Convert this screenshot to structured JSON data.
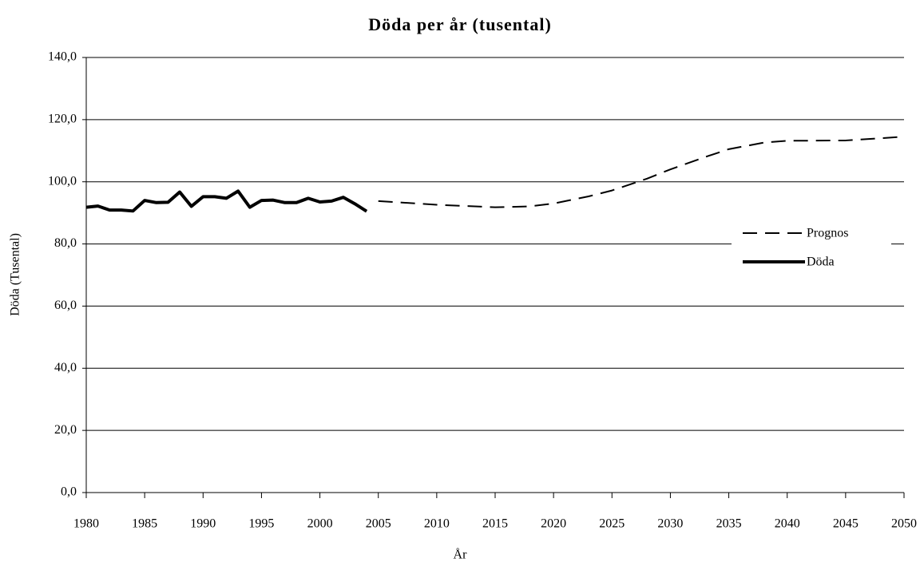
{
  "chart_data": {
    "type": "line",
    "title": "Döda per år (tusental)",
    "x_label": "År",
    "y_label": "Döda (Tusental)",
    "xlim": [
      1980,
      2050
    ],
    "xticks": [
      1980,
      1985,
      1990,
      1995,
      2000,
      2005,
      2010,
      2015,
      2020,
      2025,
      2030,
      2035,
      2040,
      2045,
      2050
    ],
    "ylim": [
      0,
      140
    ],
    "yticks": [
      {
        "value": 0,
        "label": "0,0"
      },
      {
        "value": 20,
        "label": "20,0"
      },
      {
        "value": 40,
        "label": "40,0"
      },
      {
        "value": 60,
        "label": "60,0"
      },
      {
        "value": 80,
        "label": "80,0"
      },
      {
        "value": 100,
        "label": "100,0"
      },
      {
        "value": 120,
        "label": "120,0"
      },
      {
        "value": 140,
        "label": "140,0"
      }
    ],
    "grid": true,
    "legend": "right",
    "series": [
      {
        "name": "Prognos",
        "color": "#000000",
        "dash": true,
        "x": [
          2005,
          2010,
          2015,
          2018,
          2020,
          2023,
          2025,
          2028,
          2030,
          2033,
          2035,
          2038,
          2040,
          2045,
          2050
        ],
        "values": [
          93.8,
          92.6,
          91.8,
          92.1,
          93.0,
          95.3,
          97.2,
          101.0,
          104.0,
          108.0,
          110.5,
          112.6,
          113.2,
          113.3,
          114.5
        ]
      },
      {
        "name": "Döda",
        "color": "#000000",
        "dash": false,
        "x": [
          1980,
          1981,
          1982,
          1983,
          1984,
          1985,
          1986,
          1987,
          1988,
          1989,
          1990,
          1991,
          1992,
          1993,
          1994,
          1995,
          1996,
          1997,
          1998,
          1999,
          2000,
          2001,
          2002,
          2003,
          2004
        ],
        "values": [
          91.8,
          92.2,
          90.9,
          90.9,
          90.6,
          94.0,
          93.3,
          93.4,
          96.7,
          92.1,
          95.2,
          95.2,
          94.7,
          97.0,
          91.8,
          94.0,
          94.1,
          93.3,
          93.3,
          94.7,
          93.5,
          93.8,
          95.0,
          92.9,
          90.5
        ]
      }
    ]
  }
}
